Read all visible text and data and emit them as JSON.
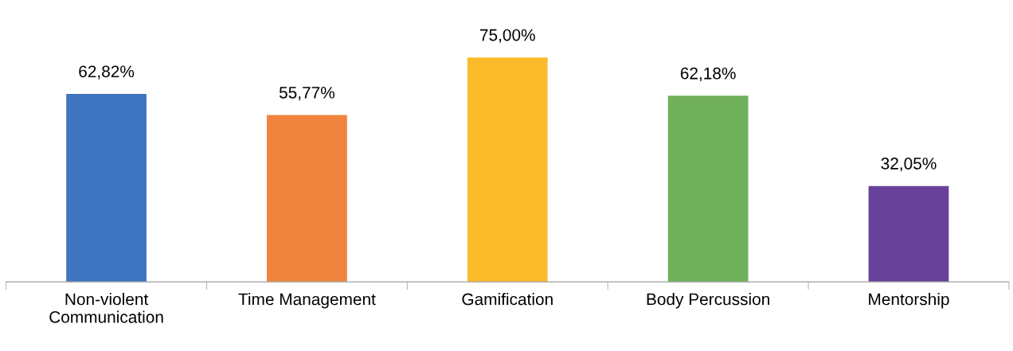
{
  "chart_data": {
    "type": "bar",
    "categories": [
      "Non-violent\nCommunication",
      "Time Management",
      "Gamification",
      "Body Percussion",
      "Mentorship"
    ],
    "values": [
      62.82,
      55.77,
      75.0,
      62.18,
      32.05
    ],
    "value_labels": [
      "62,82%",
      "55,77%",
      "75,00%",
      "62,18%",
      "32,05%"
    ],
    "colors": [
      "#3f74c0",
      "#f0843e",
      "#fbbc2c",
      "#70b05a",
      "#68419a"
    ],
    "grid": false,
    "legend": false
  }
}
